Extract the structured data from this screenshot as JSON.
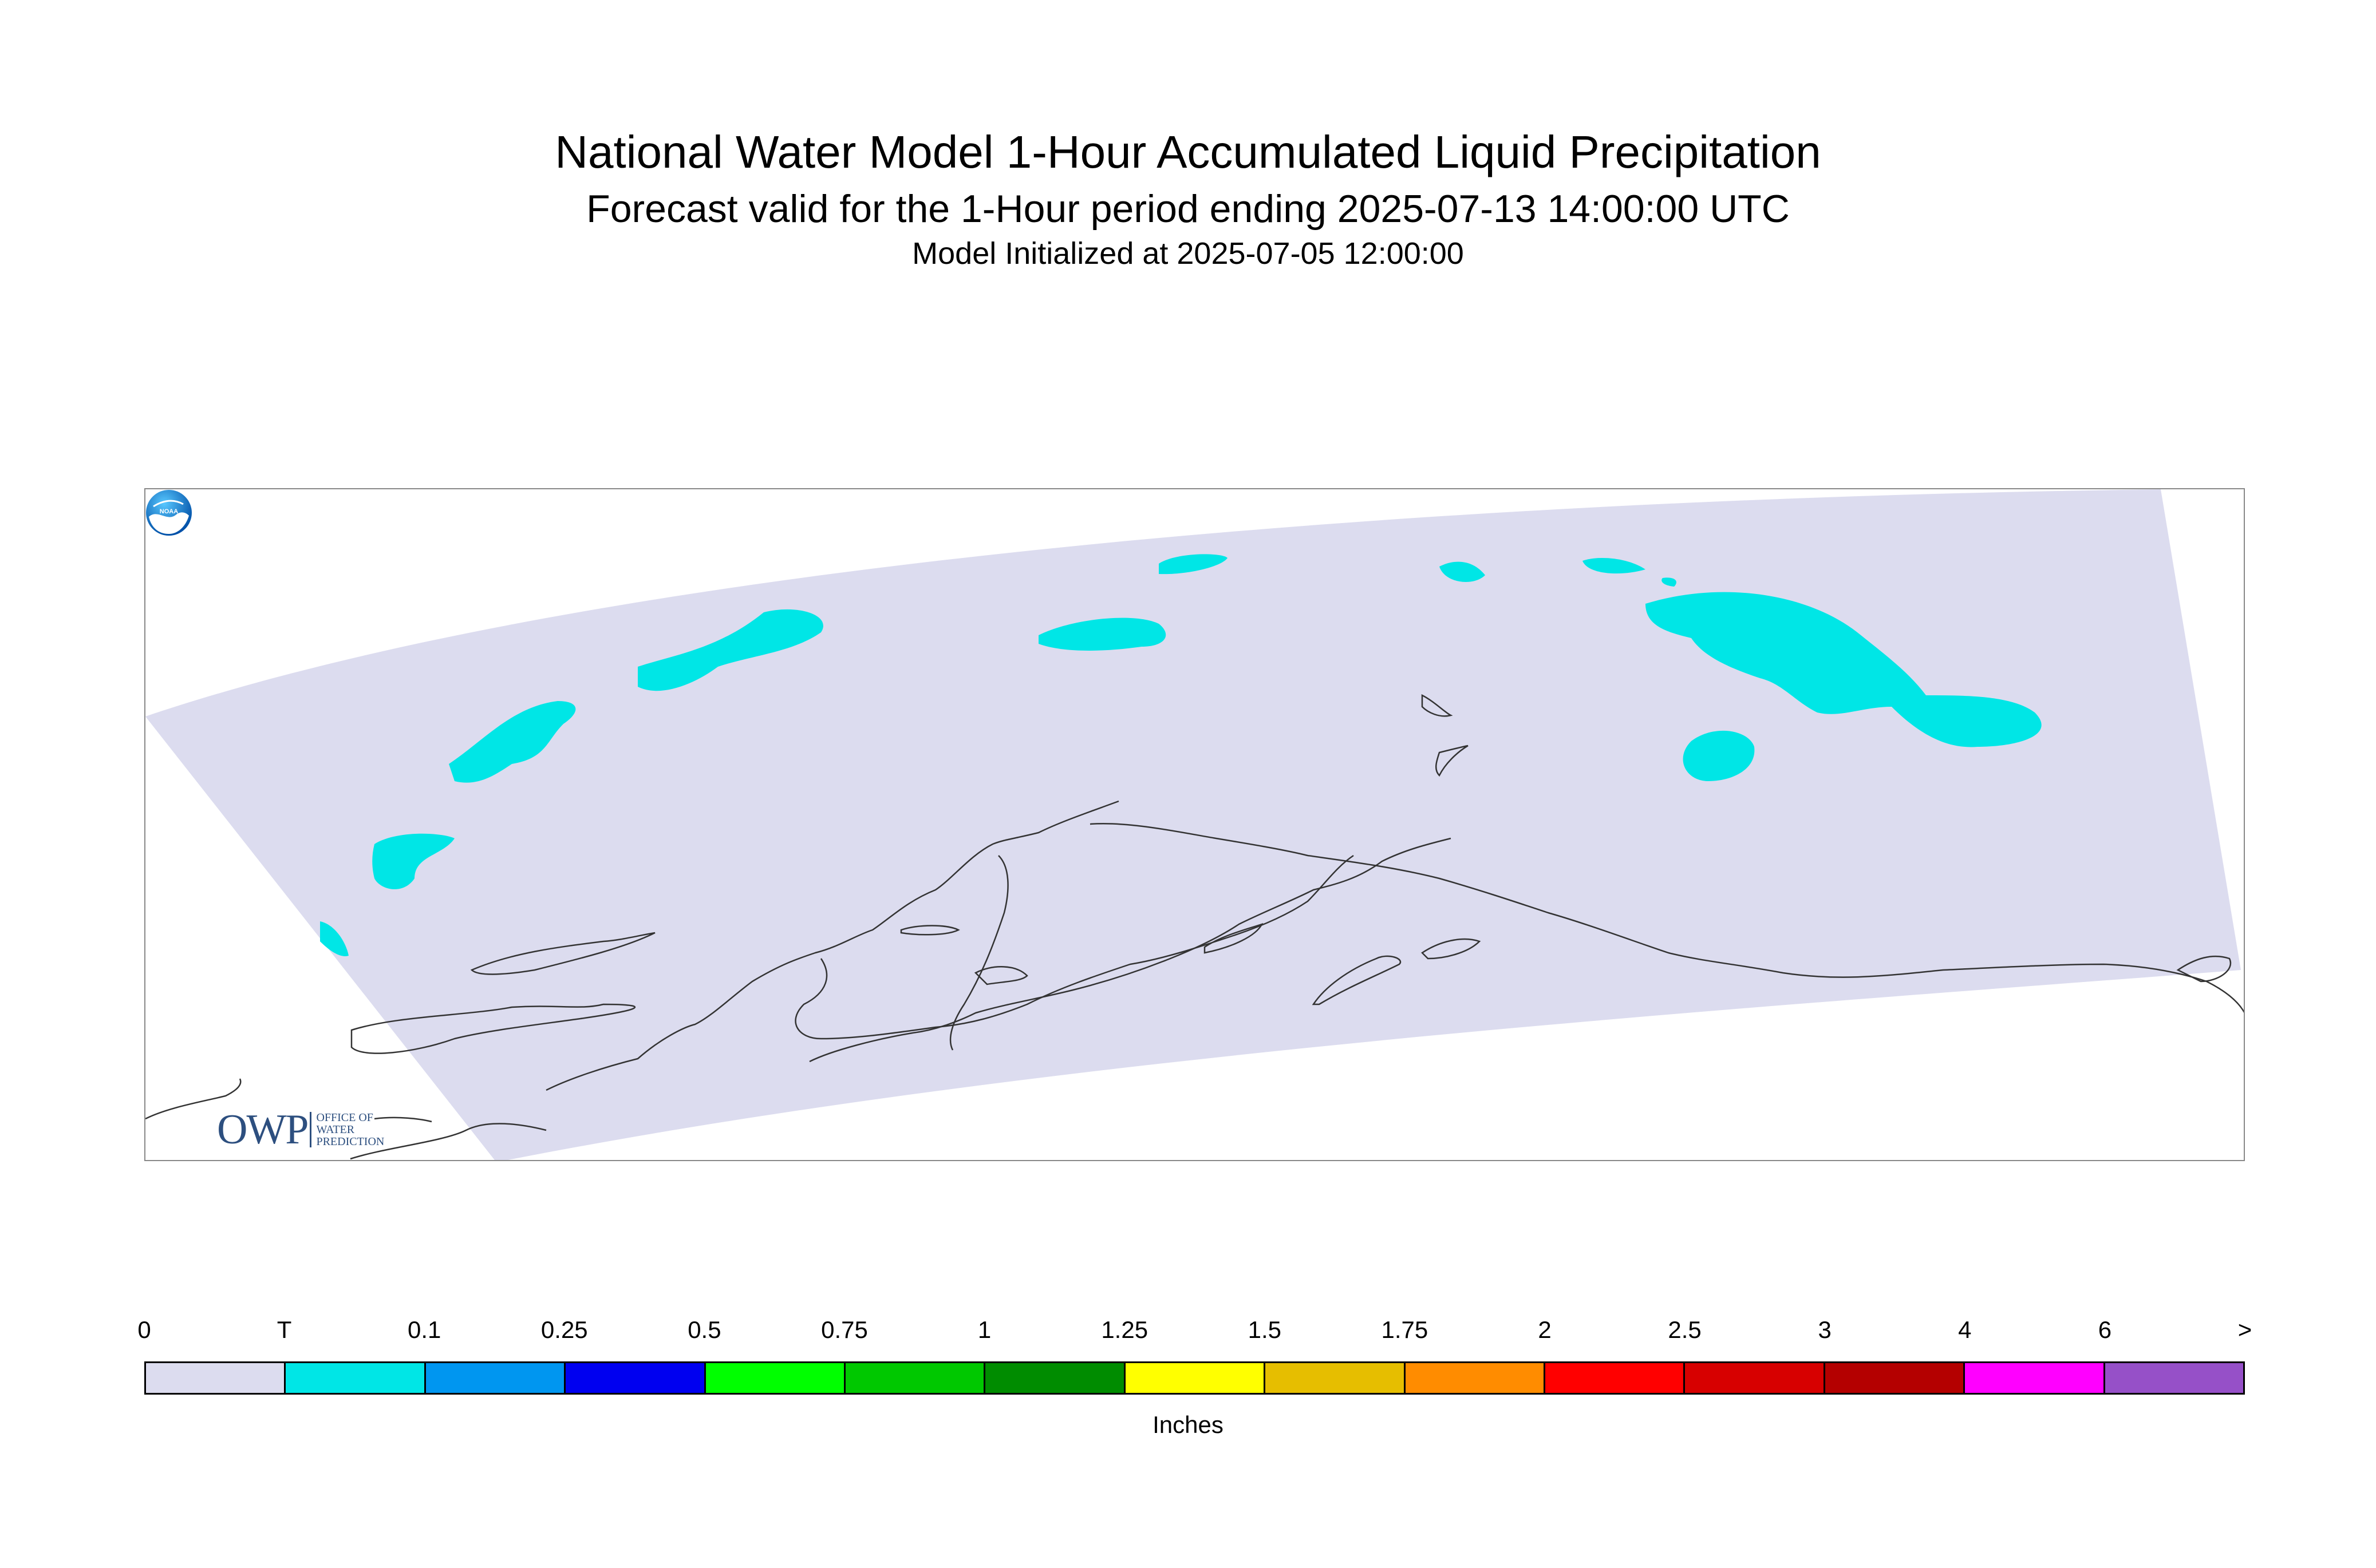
{
  "header": {
    "title": "National Water Model 1-Hour Accumulated Liquid Precipitation",
    "subtitle": "Forecast valid for the 1-Hour period ending 2025-07-13 14:00:00 UTC",
    "init_line": "Model Initialized at 2025-07-05 12:00:00"
  },
  "map": {
    "domain_fill": "#dcdcef",
    "precip_fill": "#00e6e6",
    "coastline_color": "#333333"
  },
  "logos": {
    "owp": {
      "mark": "OWP",
      "line1": "OFFICE OF",
      "line2": "WATER",
      "line3": "PREDICTION",
      "icon": "owp-logo"
    },
    "noaa": {
      "label": "NOAA",
      "icon": "noaa-logo"
    }
  },
  "legend": {
    "units": "Inches",
    "ticks": [
      "0",
      "T",
      "0.1",
      "0.25",
      "0.5",
      "0.75",
      "1",
      "1.25",
      "1.5",
      "1.75",
      "2",
      "2.5",
      "3",
      "4",
      "6",
      ">"
    ],
    "colors": [
      "#dcdcef",
      "#00e6e6",
      "#0096f0",
      "#0000f0",
      "#00ff00",
      "#00c800",
      "#008c00",
      "#ffff00",
      "#e6be00",
      "#ff8c00",
      "#ff0000",
      "#d70000",
      "#b40000",
      "#ff00ff",
      "#9650c8"
    ]
  }
}
